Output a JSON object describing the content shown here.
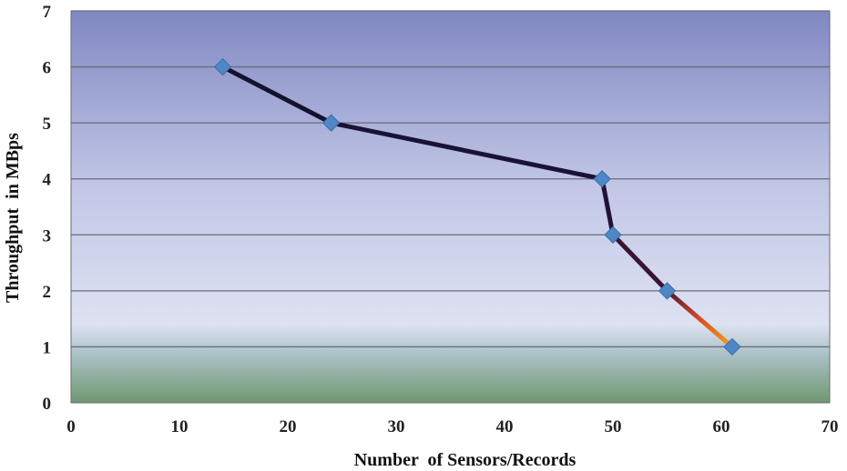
{
  "chart_data": {
    "type": "line",
    "title": "",
    "xlabel": "Number  of Sensors/Records",
    "ylabel": "Throughput  in MBps",
    "xlim": [
      0,
      70
    ],
    "ylim": [
      0,
      7
    ],
    "xticks": [
      0,
      10,
      20,
      30,
      40,
      50,
      60,
      70
    ],
    "yticks": [
      0,
      1,
      2,
      3,
      4,
      5,
      6,
      7
    ],
    "grid": "horizontal",
    "legend": "none",
    "series": [
      {
        "x": [
          14,
          24,
          49,
          50,
          55,
          61
        ],
        "y": [
          6,
          5,
          4,
          3,
          2,
          1
        ]
      }
    ],
    "colors": {
      "background_top": "#8088c2",
      "background_mid": "#d9def0",
      "background_bottom": "#6f9870",
      "gridline": "#6b6b78",
      "marker": "#4f86c6",
      "line_start": "#14122e",
      "line_mid": "#4a1630",
      "line_end": "#f5a31a"
    }
  }
}
